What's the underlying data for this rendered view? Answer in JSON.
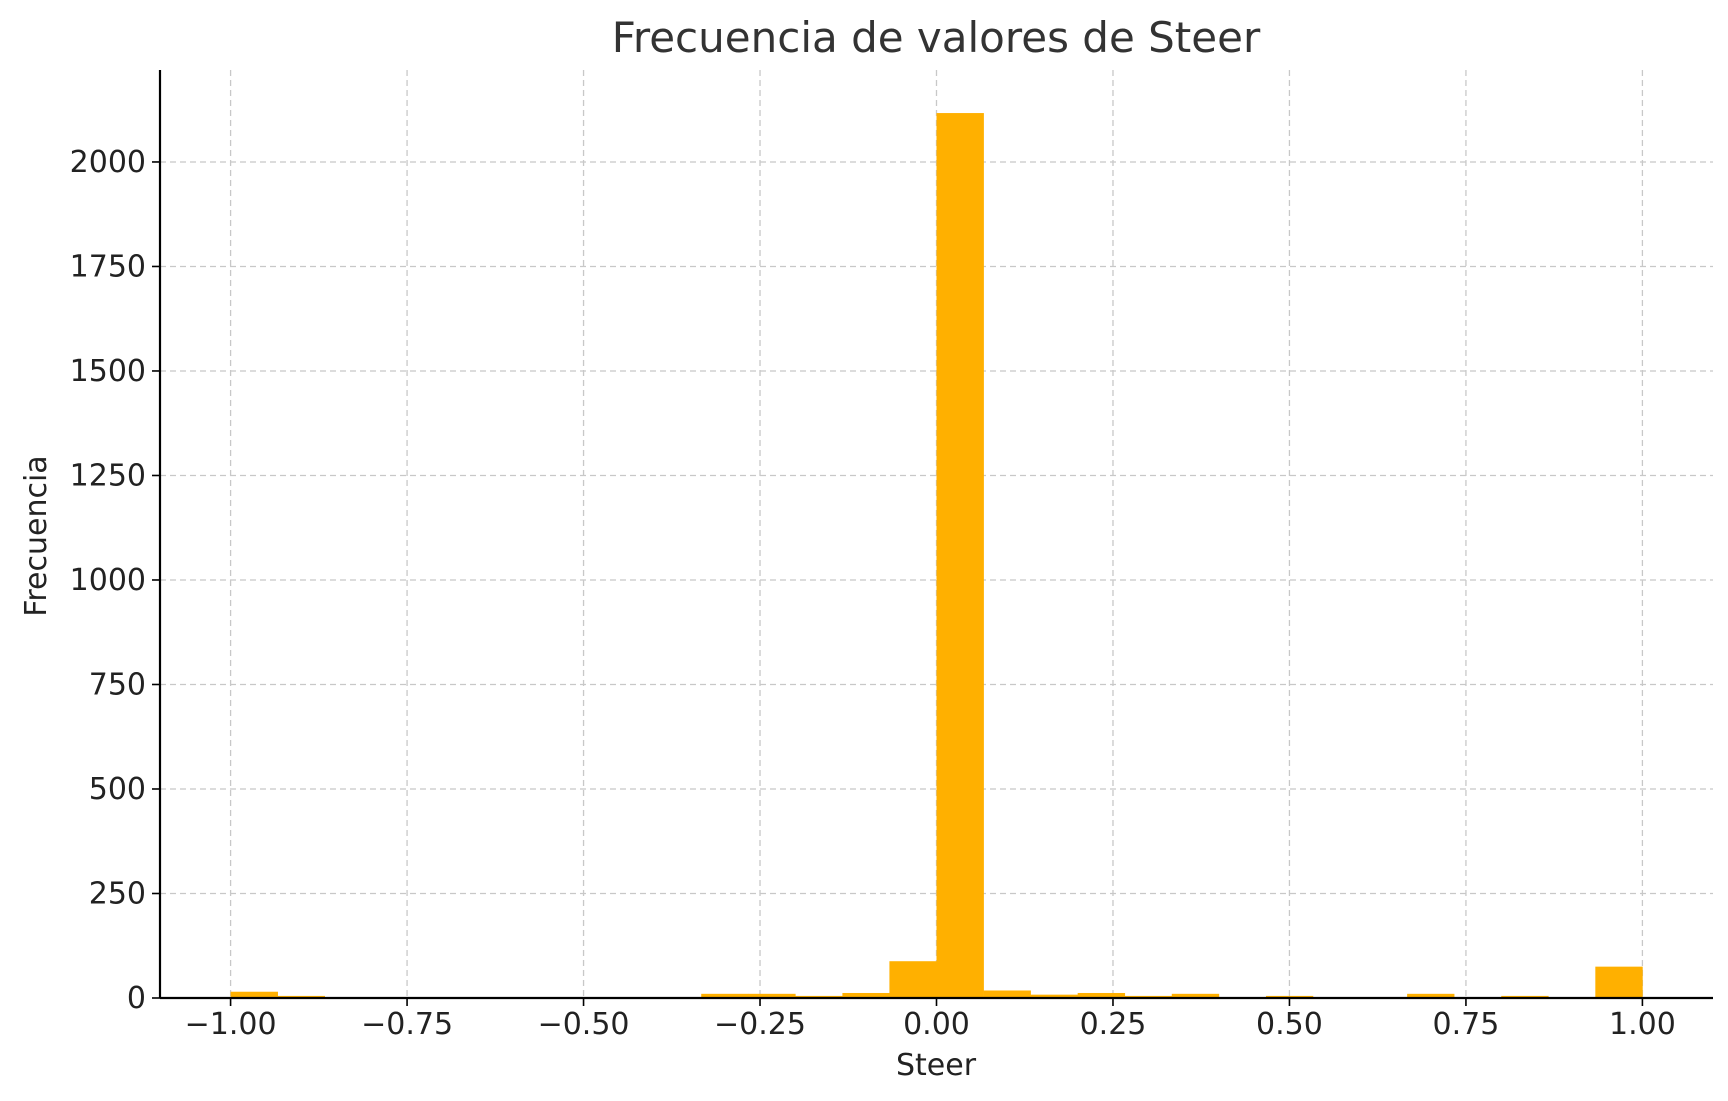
{
  "chart_data": {
    "type": "bar",
    "title": "Frecuencia de valores de Steer",
    "xlabel": "Steer",
    "ylabel": "Frecuencia",
    "xlim": [
      -1.1,
      1.1
    ],
    "ylim": [
      0,
      2220
    ],
    "xticks": [
      -1.0,
      -0.75,
      -0.5,
      -0.25,
      0.0,
      0.25,
      0.5,
      0.75,
      1.0
    ],
    "xtick_labels": [
      "−1.00",
      "−0.75",
      "−0.50",
      "−0.25",
      "0.00",
      "0.25",
      "0.50",
      "0.75",
      "1.00"
    ],
    "yticks": [
      0,
      250,
      500,
      750,
      1000,
      1250,
      1500,
      1750,
      2000
    ],
    "ytick_labels": [
      "0",
      "250",
      "500",
      "750",
      "1000",
      "1250",
      "1500",
      "1750",
      "2000"
    ],
    "grid": true,
    "bar_color": "#FFB000",
    "bin_edges": [
      -1.0,
      -0.9333,
      -0.8667,
      -0.8,
      -0.7333,
      -0.6667,
      -0.6,
      -0.5333,
      -0.4667,
      -0.4,
      -0.3333,
      -0.2667,
      -0.2,
      -0.1333,
      -0.0667,
      0.0,
      0.0667,
      0.1333,
      0.2,
      0.2667,
      0.3333,
      0.4,
      0.4667,
      0.5333,
      0.6,
      0.6667,
      0.7333,
      0.8,
      0.8667,
      0.9333,
      1.0
    ],
    "values": [
      15,
      5,
      0,
      0,
      0,
      0,
      0,
      0,
      0,
      0,
      10,
      10,
      5,
      12,
      88,
      2117,
      18,
      8,
      12,
      5,
      10,
      0,
      5,
      0,
      0,
      10,
      0,
      5,
      0,
      75
    ]
  }
}
